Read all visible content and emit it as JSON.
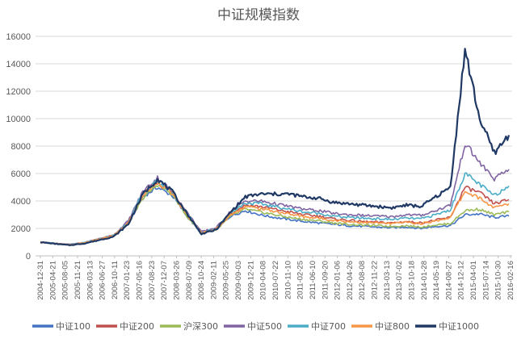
{
  "chart_data": {
    "type": "line",
    "title": "中证规模指数",
    "xlabel": "",
    "ylabel": "",
    "ylim": [
      0,
      16000
    ],
    "yticks": [
      "0",
      "2000",
      "4000",
      "6000",
      "8000",
      "10000",
      "12000",
      "14000",
      "16000"
    ],
    "grid": true,
    "legend_position": "bottom",
    "x_tick_labels": [
      "2004-12-31",
      "2005-04-21",
      "2005-08-05",
      "2005-11-21",
      "2006-03-13",
      "2006-06-27",
      "2006-10-11",
      "2007-01-23",
      "2007-05-16",
      "2007-08-23",
      "2007-12-07",
      "2008-03-26",
      "2008-07-09",
      "2008-10-24",
      "2009-02-11",
      "2009-05-25",
      "2009-09-03",
      "2009-12-21",
      "2010-04-08",
      "2010-07-22",
      "2010-11-10",
      "2011-02-25",
      "2011-06-10",
      "2011-09-20",
      "2012-01-06",
      "2012-04-26",
      "2012-08-08",
      "2012-11-22",
      "2013-03-13",
      "2013-07-02",
      "2013-10-18",
      "2014-01-28",
      "2014-05-19",
      "2014-08-27",
      "2014-12-12",
      "2015-04-01",
      "2015-07-14",
      "2015-10-30",
      "2016-02-16"
    ],
    "series": [
      {
        "name": "中证100",
        "color": "#4472c4",
        "values": [
          1000,
          900,
          800,
          950,
          1200,
          1450,
          2300,
          4300,
          5000,
          4400,
          2900,
          1600,
          1900,
          2900,
          3300,
          3000,
          2800,
          2650,
          2500,
          2400,
          2300,
          2200,
          2150,
          2100,
          2050,
          2100,
          2000,
          2150,
          2200,
          3000,
          3050,
          2800,
          2900
        ]
      },
      {
        "name": "中证200",
        "color": "#c0504d",
        "values": [
          1000,
          900,
          820,
          960,
          1250,
          1500,
          2400,
          4500,
          5300,
          4600,
          3100,
          1700,
          2000,
          3100,
          3700,
          3600,
          3400,
          3200,
          3000,
          2900,
          2700,
          2600,
          2500,
          2450,
          2400,
          2500,
          2400,
          2600,
          2800,
          5000,
          4600,
          3800,
          4100
        ]
      },
      {
        "name": "沪深300",
        "color": "#9bbb59",
        "values": [
          1000,
          890,
          800,
          940,
          1180,
          1420,
          2300,
          4200,
          5200,
          4500,
          2900,
          1650,
          1900,
          2900,
          3400,
          3200,
          3000,
          2800,
          2650,
          2550,
          2400,
          2300,
          2250,
          2200,
          2150,
          2200,
          2100,
          2250,
          2350,
          3300,
          3400,
          3000,
          3200
        ]
      },
      {
        "name": "中证500",
        "color": "#8064a2",
        "values": [
          1000,
          900,
          840,
          970,
          1250,
          1500,
          2550,
          4700,
          5700,
          4700,
          3200,
          1750,
          2050,
          3250,
          4000,
          4000,
          3800,
          3600,
          3400,
          3300,
          3100,
          3000,
          2950,
          2900,
          2850,
          3000,
          2950,
          3300,
          3700,
          8200,
          6800,
          5600,
          6300
        ]
      },
      {
        "name": "中证700",
        "color": "#4bacc6",
        "values": [
          1000,
          900,
          820,
          960,
          1230,
          1480,
          2450,
          4550,
          5450,
          4600,
          3100,
          1700,
          2000,
          3150,
          3850,
          3800,
          3600,
          3400,
          3200,
          3100,
          2900,
          2800,
          2750,
          2700,
          2650,
          2750,
          2700,
          3000,
          3350,
          6000,
          5200,
          4400,
          5100
        ]
      },
      {
        "name": "中证800",
        "color": "#f79646",
        "values": [
          1000,
          895,
          810,
          950,
          1210,
          1460,
          2400,
          4400,
          5400,
          4550,
          3000,
          1680,
          1950,
          3000,
          3600,
          3450,
          3250,
          3050,
          2850,
          2750,
          2600,
          2500,
          2450,
          2400,
          2350,
          2450,
          2350,
          2550,
          2800,
          4700,
          4200,
          3500,
          3800
        ]
      },
      {
        "name": "中证1000",
        "color": "#1f3864",
        "values": [
          1000,
          880,
          780,
          900,
          1150,
          1400,
          2300,
          4500,
          5600,
          4700,
          3100,
          1600,
          1900,
          3200,
          4300,
          4500,
          4500,
          4500,
          4300,
          4200,
          3900,
          3800,
          3700,
          3600,
          3500,
          3700,
          3600,
          4300,
          5000,
          15000,
          10000,
          7500,
          8800
        ]
      }
    ]
  }
}
